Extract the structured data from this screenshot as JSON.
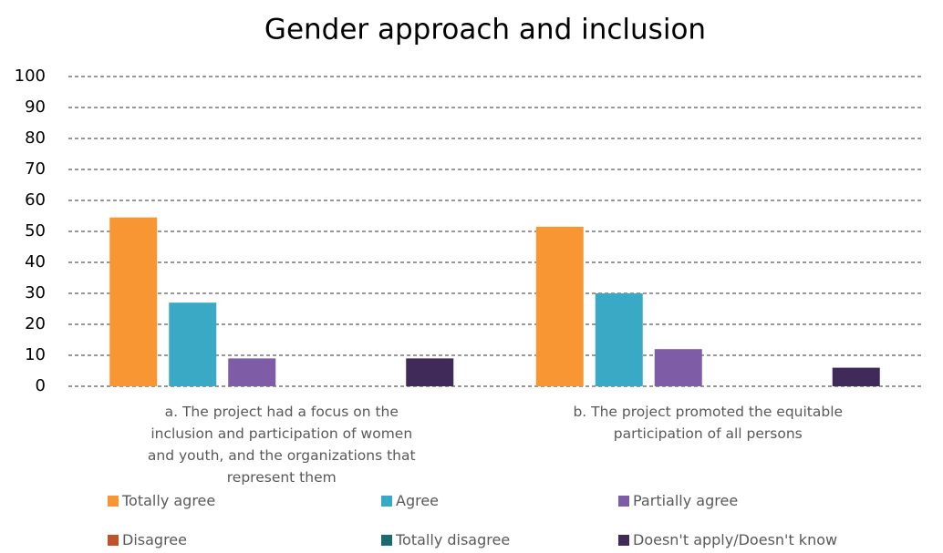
{
  "chart_data": {
    "type": "bar",
    "title": "Gender approach and inclusion",
    "categories": [
      "a. The project had a focus on the inclusion and participation of women and youth, and the organizations that represent them",
      "b. The project promoted the equitable participation of all persons"
    ],
    "series": [
      {
        "name": "Totally agree",
        "color": "#f79633",
        "values": [
          54.5,
          51.5
        ]
      },
      {
        "name": "Agree",
        "color": "#3aa9c6",
        "values": [
          27,
          30
        ]
      },
      {
        "name": "Partially agree",
        "color": "#7f5ca6",
        "values": [
          9,
          12
        ]
      },
      {
        "name": "Disagree",
        "color": "#c1532b",
        "values": [
          0,
          0
        ]
      },
      {
        "name": "Totally disagree",
        "color": "#1a6a72",
        "values": [
          0,
          0
        ]
      },
      {
        "name": "Doesn't apply/Doesn't know",
        "color": "#3f2a5a",
        "values": [
          9,
          6
        ]
      }
    ],
    "ylim": [
      0,
      100
    ],
    "yticks": [
      0,
      10,
      20,
      30,
      40,
      50,
      60,
      70,
      80,
      90,
      100
    ],
    "grid": true,
    "legend": "bottom"
  }
}
